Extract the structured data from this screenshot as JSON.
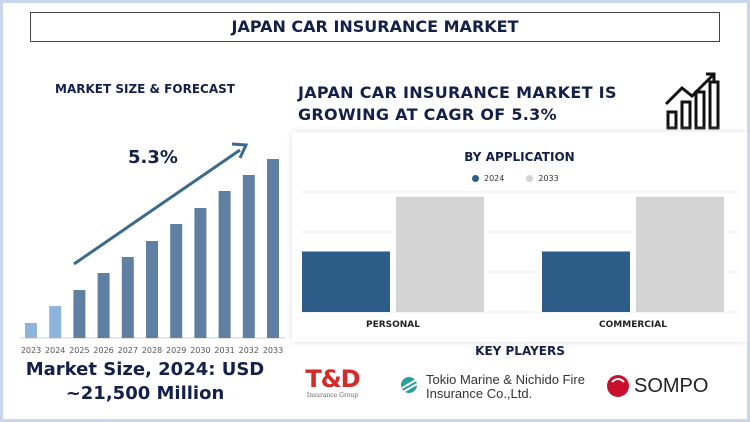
{
  "title": "JAPAN CAR INSURANCE MARKET",
  "left": {
    "heading": "MARKET SIZE & FORECAST",
    "cagr_label": "5.3%",
    "market_size_line1": "Market Size, 2024: USD",
    "market_size_line2": "~21,500 Million"
  },
  "right": {
    "heading_line1": "JAPAN CAR INSURANCE MARKET IS",
    "heading_line2": "GROWING AT CAGR OF 5.3%",
    "icon": "growth-chart-icon"
  },
  "key_players": {
    "title": "KEY PLAYERS",
    "players": [
      {
        "name": "T&D",
        "sub": "Insurance Group"
      },
      {
        "name_line1": "Tokio Marine & Nichido Fire",
        "name_line2": "Insurance Co.,Ltd."
      },
      {
        "name": "SOMPO"
      }
    ]
  },
  "chart_data": [
    {
      "type": "bar",
      "title": "",
      "categories": [
        "2023",
        "2024",
        "2025",
        "2026",
        "2027",
        "2028",
        "2029",
        "2030",
        "2031",
        "2032",
        "2033"
      ],
      "values": [
        15,
        32,
        48,
        65,
        81,
        97,
        114,
        130,
        147,
        163,
        179
      ],
      "colors": {
        "historical": "#8db4dd",
        "forecast": "#5f80a3",
        "arrow": "#3c6a8c"
      },
      "annotation": "5.3%",
      "grid": false
    },
    {
      "type": "bar",
      "title": "BY APPLICATION",
      "categories": [
        "PERSONAL",
        "COMMERCIAL"
      ],
      "series": [
        {
          "name": "2024",
          "values": [
            63,
            63
          ],
          "color": "#2e5c88"
        },
        {
          "name": "2033",
          "values": [
            120,
            120
          ],
          "color": "#d4d4d4"
        }
      ],
      "ylim": [
        0,
        125
      ],
      "grid": true,
      "legend": "top"
    }
  ]
}
